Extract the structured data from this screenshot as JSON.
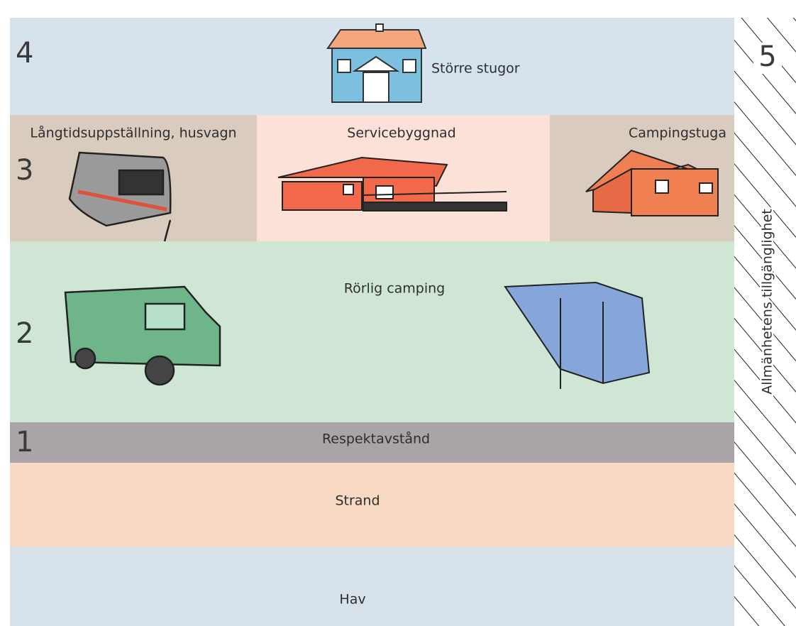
{
  "zones": [
    {
      "number": "4",
      "label": "Större stugor"
    },
    {
      "number": "3",
      "labels": [
        "Långtidsuppställning, husvagn",
        "Servicebyggnad",
        "Campingstuga"
      ]
    },
    {
      "number": "2",
      "label": "Rörlig camping"
    },
    {
      "number": "1",
      "label": "Respektavstånd"
    },
    {
      "label": "Strand"
    },
    {
      "label": "Hav"
    }
  ],
  "side": {
    "number": "5",
    "label": "Allmänhetens tillgänglighet"
  }
}
